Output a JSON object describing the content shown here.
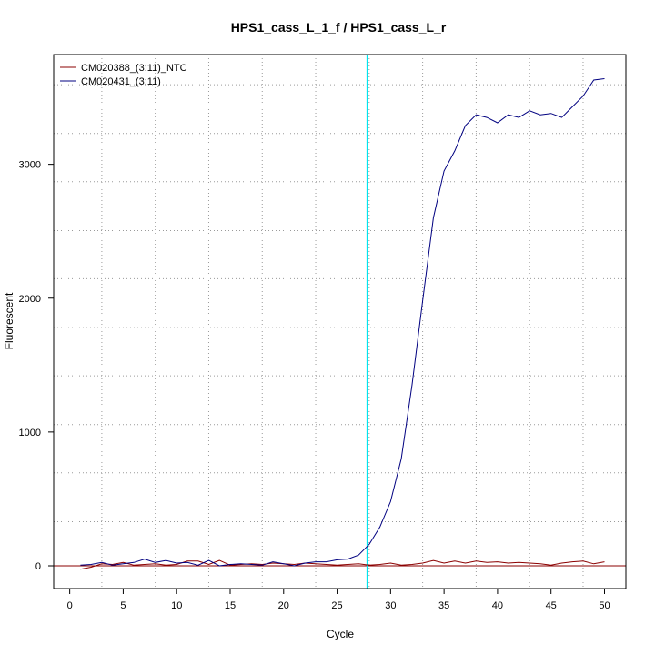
{
  "chart_data": {
    "type": "line",
    "title": "HPS1_cass_L_1_f / HPS1_cass_L_r",
    "xlabel": "Cycle",
    "ylabel": "Fluorescent",
    "xlim": [
      -1.5,
      52
    ],
    "ylim": [
      -170,
      3820
    ],
    "x_ticks": [
      "0",
      "5",
      "10",
      "15",
      "20",
      "25",
      "30",
      "35",
      "40",
      "45",
      "50"
    ],
    "y_ticks": [
      "0",
      "1000",
      "2000",
      "3000"
    ],
    "x_grid": [
      3,
      8,
      13,
      18,
      23,
      28,
      33,
      38,
      43,
      48
    ],
    "y_grid": [
      0,
      330,
      695,
      1055,
      1420,
      1780,
      2145,
      2505,
      2870,
      3230,
      3595
    ],
    "grid": true,
    "threshold": {
      "x": 27.8,
      "color": "#00e5ee"
    },
    "baseline": {
      "y": 0,
      "color": "#8b0000"
    },
    "legend_position": "top-left",
    "series": [
      {
        "name": "CM020388_(3:11)_NTC",
        "color": "#8b0000",
        "x": [
          1,
          2,
          3,
          4,
          5,
          6,
          7,
          8,
          9,
          10,
          11,
          12,
          13,
          14,
          15,
          16,
          17,
          18,
          19,
          20,
          21,
          22,
          23,
          24,
          25,
          26,
          27,
          28,
          29,
          30,
          31,
          32,
          33,
          34,
          35,
          36,
          37,
          38,
          39,
          40,
          41,
          42,
          43,
          44,
          45,
          46,
          47,
          48,
          49,
          50
        ],
        "y": [
          -25,
          -10,
          15,
          10,
          25,
          5,
          10,
          15,
          5,
          10,
          35,
          35,
          10,
          40,
          5,
          10,
          15,
          10,
          20,
          15,
          10,
          20,
          15,
          10,
          5,
          10,
          15,
          5,
          10,
          20,
          5,
          10,
          20,
          40,
          20,
          35,
          20,
          35,
          25,
          30,
          20,
          25,
          20,
          15,
          5,
          20,
          30,
          35,
          15,
          30
        ]
      },
      {
        "name": "CM020431_(3:11)",
        "color": "#000080",
        "x": [
          1,
          2,
          3,
          4,
          5,
          6,
          7,
          8,
          9,
          10,
          11,
          12,
          13,
          14,
          15,
          16,
          17,
          18,
          19,
          20,
          21,
          22,
          23,
          24,
          25,
          26,
          27,
          28,
          29,
          30,
          31,
          32,
          33,
          34,
          35,
          36,
          37,
          38,
          39,
          40,
          41,
          42,
          43,
          44,
          45,
          46,
          47,
          48,
          49,
          50
        ],
        "y": [
          5,
          10,
          25,
          5,
          15,
          25,
          50,
          25,
          40,
          20,
          25,
          5,
          40,
          0,
          10,
          15,
          10,
          5,
          30,
          15,
          0,
          20,
          30,
          30,
          45,
          50,
          80,
          160,
          290,
          480,
          800,
          1350,
          1980,
          2600,
          2950,
          3100,
          3290,
          3370,
          3350,
          3310,
          3370,
          3350,
          3400,
          3370,
          3380,
          3350,
          3430,
          3510,
          3630,
          3640
        ]
      }
    ]
  }
}
